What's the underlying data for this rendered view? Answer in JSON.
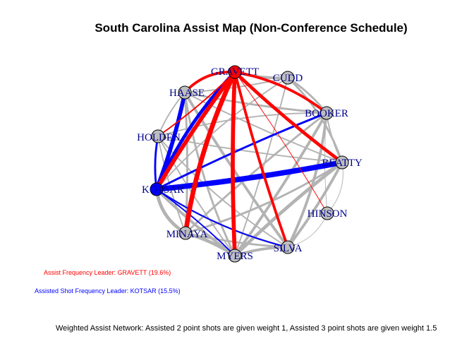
{
  "title": "South Carolina Assist Map (Non-Conference Schedule)",
  "legend": {
    "assist_leader": "Assist Frequency Leader: GRAVETT (19.6%)",
    "shot_leader": "Assisted Shot Frequency Leader: KOTSAR (15.5%)"
  },
  "footnote": "Weighted Assist Network: Assisted 2 point shots are given weight 1, Assisted 3 point shots are given weight 1.5",
  "colors": {
    "assist_leader": "#ff0000",
    "shot_leader": "#0000ff",
    "edge_default": "#b3b3b3",
    "node_default": "#bebebe",
    "label": "#00008b"
  },
  "players": [
    "GRAVETT",
    "CUDD",
    "BOOKER",
    "BEATTY",
    "HINSON",
    "SILVA",
    "MYERS",
    "MINAYA",
    "KOTSAR",
    "HOLDEN",
    "HAASE"
  ],
  "highlight": {
    "assist_leader": "GRAVETT",
    "shot_leader": "KOTSAR"
  },
  "edges": [
    {
      "from": "GRAVETT",
      "to": "BOOKER",
      "weight": 4,
      "color": "red"
    },
    {
      "from": "GRAVETT",
      "to": "BEATTY",
      "weight": 5,
      "color": "red"
    },
    {
      "from": "GRAVETT",
      "to": "MYERS",
      "weight": 6,
      "color": "red"
    },
    {
      "from": "GRAVETT",
      "to": "MINAYA",
      "weight": 7,
      "color": "red"
    },
    {
      "from": "GRAVETT",
      "to": "SILVA",
      "weight": 4,
      "color": "red"
    },
    {
      "from": "GRAVETT",
      "to": "KOTSAR",
      "weight": 6,
      "color": "red"
    },
    {
      "from": "GRAVETT",
      "to": "HAASE",
      "weight": 4,
      "color": "red"
    },
    {
      "from": "GRAVETT",
      "to": "HOLDEN",
      "weight": 2,
      "color": "red"
    },
    {
      "from": "GRAVETT",
      "to": "CUDD",
      "weight": 4,
      "color": "gray"
    },
    {
      "from": "GRAVETT",
      "to": "HINSON",
      "weight": 1,
      "color": "red"
    },
    {
      "from": "KOTSAR",
      "to": "BEATTY",
      "weight": 8,
      "color": "blue"
    },
    {
      "from": "KOTSAR",
      "to": "GRAVETT",
      "weight": 5,
      "color": "blue"
    },
    {
      "from": "KOTSAR",
      "to": "HAASE",
      "weight": 6,
      "color": "blue"
    },
    {
      "from": "KOTSAR",
      "to": "BOOKER",
      "weight": 3,
      "color": "blue"
    },
    {
      "from": "KOTSAR",
      "to": "SILVA",
      "weight": 2,
      "color": "blue"
    },
    {
      "from": "KOTSAR",
      "to": "MYERS",
      "weight": 2,
      "color": "blue"
    },
    {
      "from": "KOTSAR",
      "to": "HOLDEN",
      "weight": 3,
      "color": "blue"
    },
    {
      "from": "CUDD",
      "to": "BOOKER",
      "weight": 3,
      "color": "gray"
    },
    {
      "from": "CUDD",
      "to": "BEATTY",
      "weight": 3,
      "color": "gray"
    },
    {
      "from": "HAASE",
      "to": "BOOKER",
      "weight": 3,
      "color": "gray"
    },
    {
      "from": "HAASE",
      "to": "SILVA",
      "weight": 4,
      "color": "gray"
    },
    {
      "from": "HAASE",
      "to": "MYERS",
      "weight": 3,
      "color": "gray"
    },
    {
      "from": "HAASE",
      "to": "BEATTY",
      "weight": 2,
      "color": "gray"
    },
    {
      "from": "HAASE",
      "to": "HOLDEN",
      "weight": 2,
      "color": "gray"
    },
    {
      "from": "HOLDEN",
      "to": "BOOKER",
      "weight": 2,
      "color": "gray"
    },
    {
      "from": "HOLDEN",
      "to": "BEATTY",
      "weight": 2,
      "color": "gray"
    },
    {
      "from": "HOLDEN",
      "to": "MYERS",
      "weight": 2,
      "color": "gray"
    },
    {
      "from": "HOLDEN",
      "to": "SILVA",
      "weight": 2,
      "color": "gray"
    },
    {
      "from": "BOOKER",
      "to": "MINAYA",
      "weight": 3,
      "color": "gray"
    },
    {
      "from": "BOOKER",
      "to": "MYERS",
      "weight": 4,
      "color": "gray"
    },
    {
      "from": "BOOKER",
      "to": "SILVA",
      "weight": 4,
      "color": "gray"
    },
    {
      "from": "BOOKER",
      "to": "BEATTY",
      "weight": 2,
      "color": "gray"
    },
    {
      "from": "BOOKER",
      "to": "KOTSAR",
      "weight": 3,
      "color": "gray"
    },
    {
      "from": "BEATTY",
      "to": "MINAYA",
      "weight": 3,
      "color": "gray"
    },
    {
      "from": "BEATTY",
      "to": "MYERS",
      "weight": 5,
      "color": "gray"
    },
    {
      "from": "BEATTY",
      "to": "SILVA",
      "weight": 4,
      "color": "gray"
    },
    {
      "from": "BEATTY",
      "to": "HINSON",
      "weight": 1,
      "color": "gray"
    },
    {
      "from": "SILVA",
      "to": "MYERS",
      "weight": 4,
      "color": "gray"
    },
    {
      "from": "SILVA",
      "to": "MINAYA",
      "weight": 3,
      "color": "gray"
    },
    {
      "from": "SILVA",
      "to": "KOTSAR",
      "weight": 3,
      "color": "gray"
    },
    {
      "from": "MYERS",
      "to": "MINAYA",
      "weight": 5,
      "color": "gray"
    },
    {
      "from": "MYERS",
      "to": "KOTSAR",
      "weight": 4,
      "color": "gray"
    },
    {
      "from": "MINAYA",
      "to": "KOTSAR",
      "weight": 5,
      "color": "gray"
    },
    {
      "from": "MINAYA",
      "to": "HAASE",
      "weight": 3,
      "color": "gray"
    },
    {
      "from": "MINAYA",
      "to": "HOLDEN",
      "weight": 2,
      "color": "gray"
    },
    {
      "from": "HINSON",
      "to": "SILVA",
      "weight": 1,
      "color": "gray"
    },
    {
      "from": "HINSON",
      "to": "BOOKER",
      "weight": 1,
      "color": "gray"
    },
    {
      "from": "CUDD",
      "to": "MYERS",
      "weight": 2,
      "color": "gray"
    },
    {
      "from": "CUDD",
      "to": "KOTSAR",
      "weight": 2,
      "color": "gray"
    },
    {
      "from": "HAASE",
      "to": "CUDD",
      "weight": 2,
      "color": "gray"
    }
  ]
}
